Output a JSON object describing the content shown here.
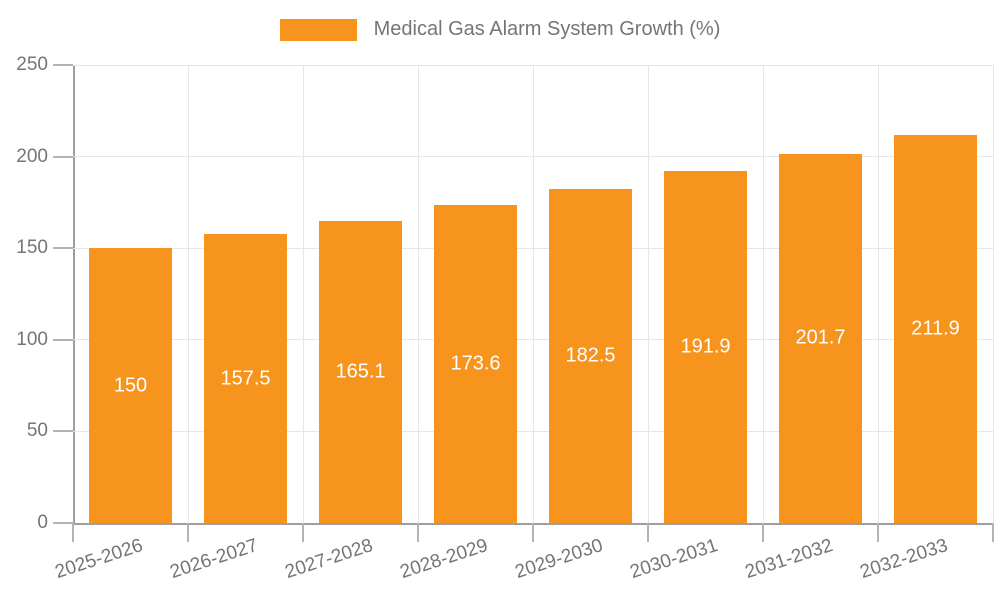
{
  "chart_data": {
    "type": "bar",
    "title": "Medical Gas Alarm System Growth (%)",
    "legend": {
      "label": "Medical Gas Alarm System Growth (%)",
      "position": "top-center"
    },
    "categories": [
      "2025-2026",
      "2026-2027",
      "2027-2028",
      "2028-2029",
      "2029-2030",
      "2030-2031",
      "2031-2032",
      "2032-2033"
    ],
    "series": [
      {
        "name": "Medical Gas Alarm System Growth (%)",
        "values": [
          150,
          157.5,
          165.1,
          173.6,
          182.5,
          191.9,
          201.7,
          211.9
        ]
      }
    ],
    "value_labels": [
      "150",
      "157.5",
      "165.1",
      "173.6",
      "182.5",
      "191.9",
      "201.7",
      "211.9"
    ],
    "xlabel": "",
    "ylabel": "",
    "ylim": [
      0,
      250
    ],
    "y_ticks": [
      0,
      50,
      100,
      150,
      200,
      250
    ],
    "grid": "horizontal ticks + vertical category boundaries",
    "colors": {
      "bar": "#f7941e",
      "value_text": "#ffffff",
      "axis_text": "#757575",
      "grid_line": "#e6e6e6",
      "axis_line": "#9e9e9e",
      "tick_line": "#b3b3b3",
      "background": "#ffffff"
    }
  }
}
